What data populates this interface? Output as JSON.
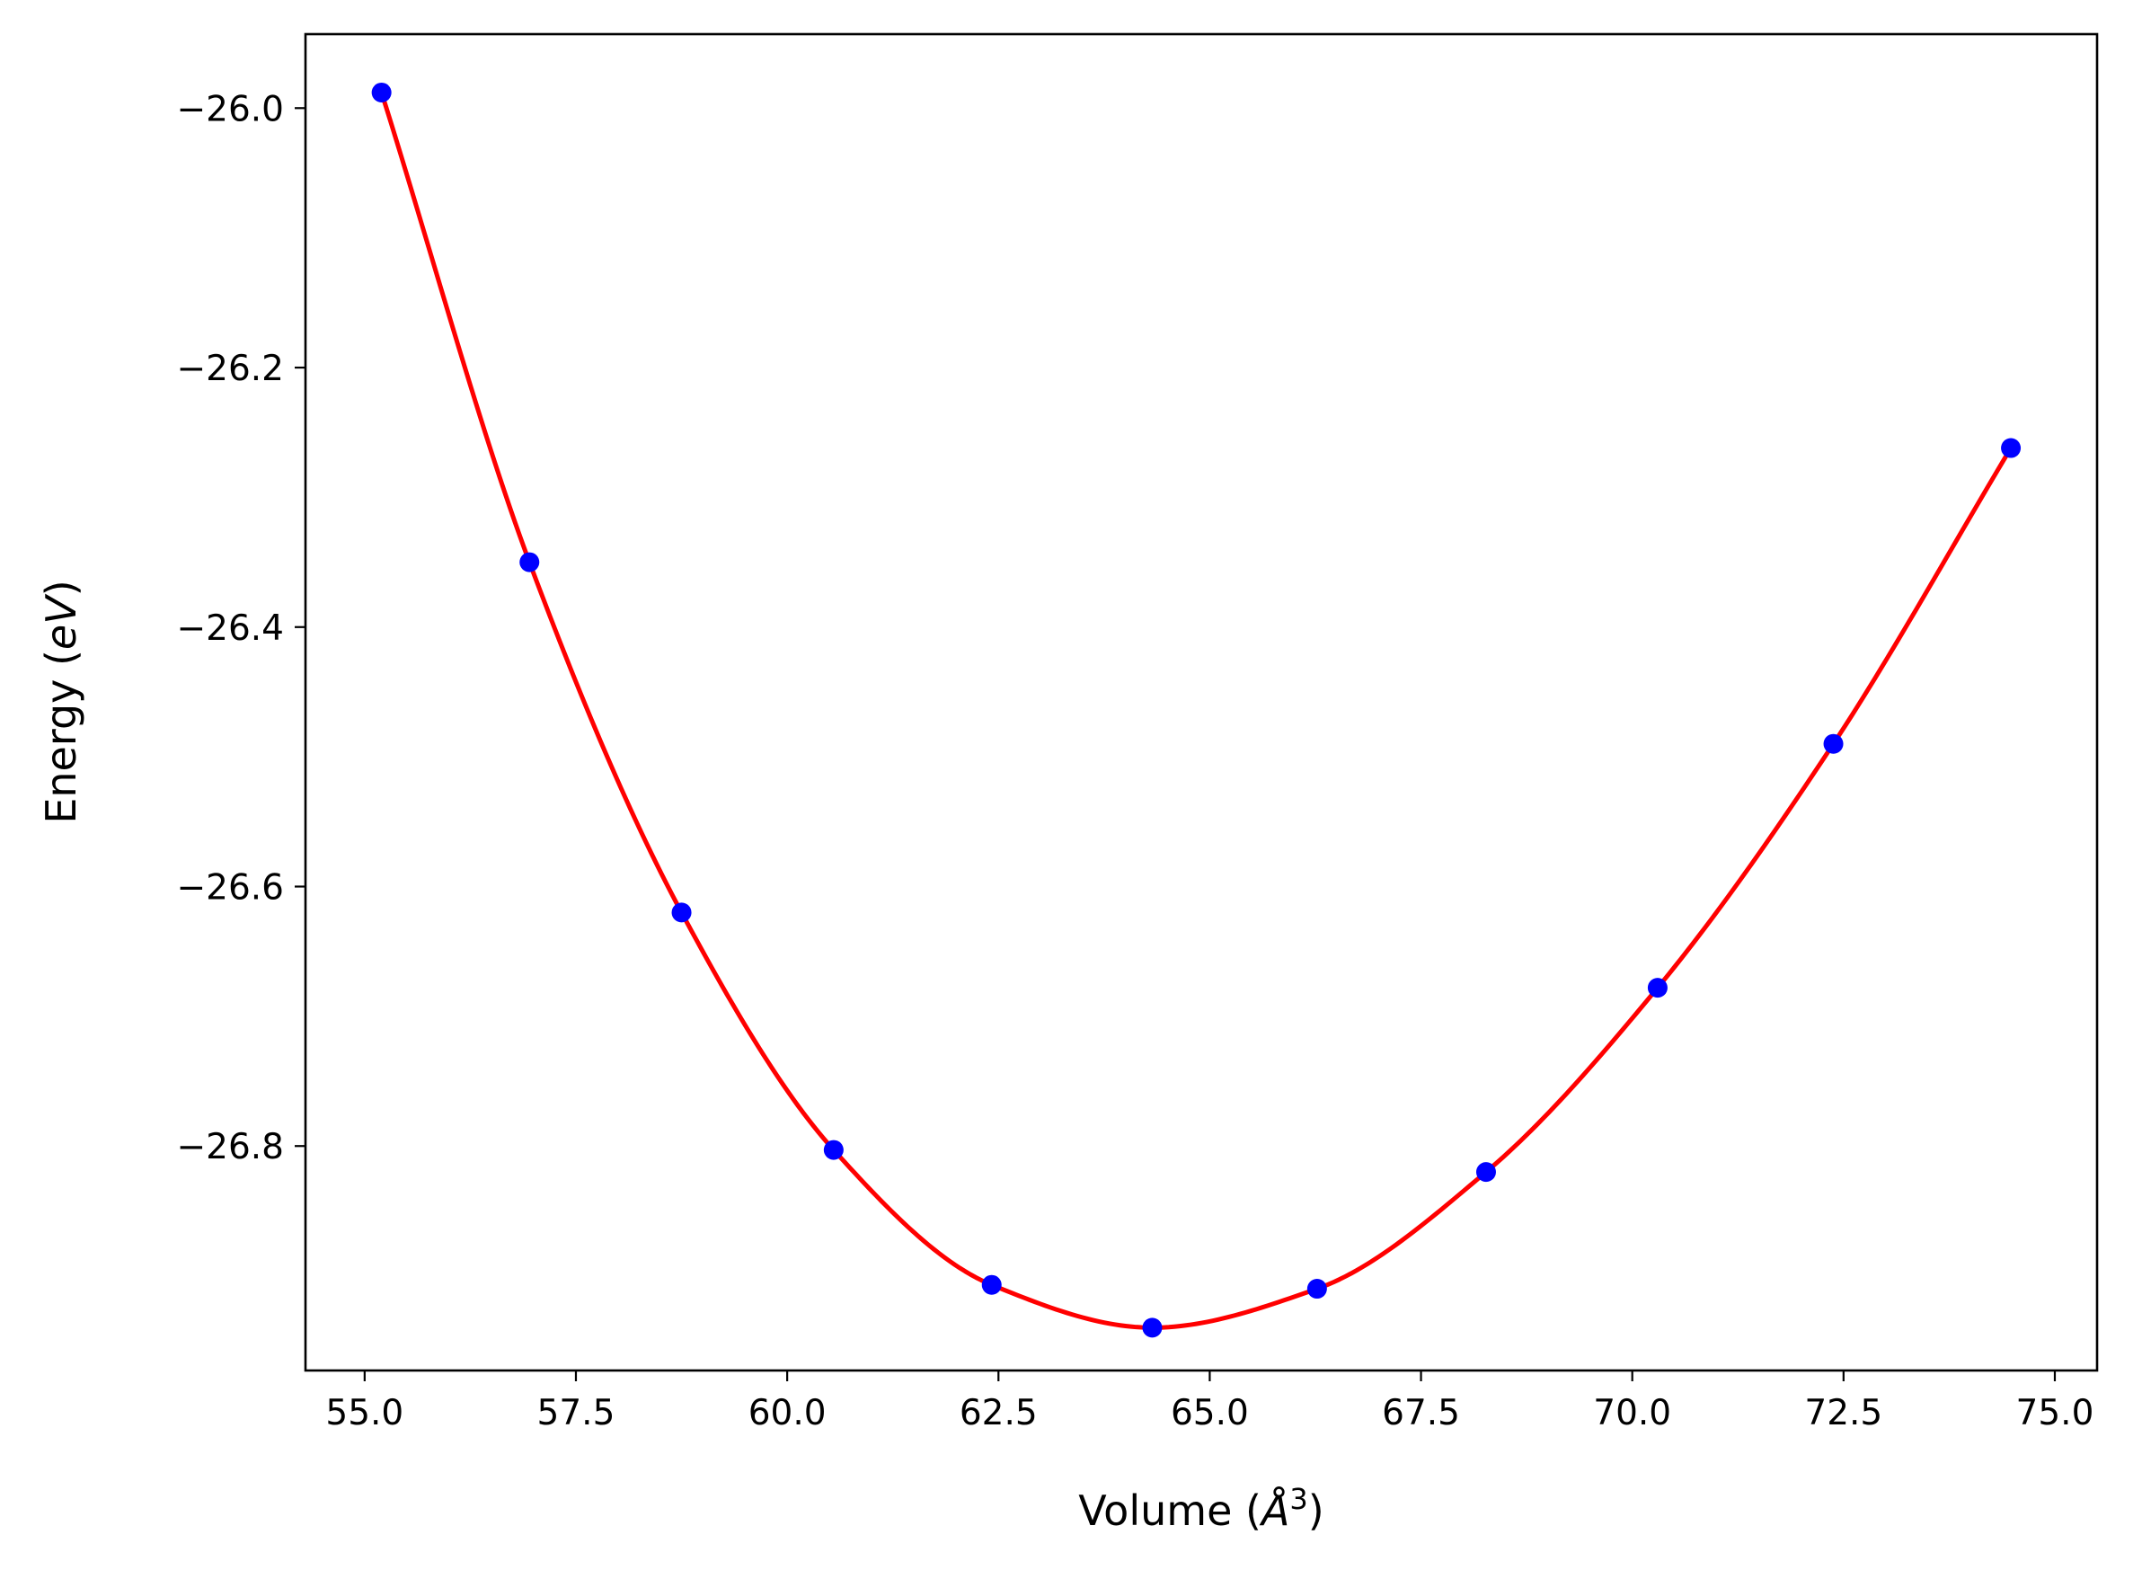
{
  "chart_data": {
    "type": "scatter",
    "title": "",
    "xlabel": {
      "main": "Volume (",
      "italic": "Å",
      "sup": "3",
      "close": ")"
    },
    "ylabel": {
      "main": "Energy (",
      "italic": "eV",
      "close": ")"
    },
    "xlim": [
      54.3,
      75.5
    ],
    "ylim": [
      -26.973,
      -25.943
    ],
    "xticks": [
      55.0,
      57.5,
      60.0,
      62.5,
      65.0,
      67.5,
      70.0,
      72.5,
      75.0
    ],
    "xtick_labels": [
      "55.0",
      "57.5",
      "60.0",
      "62.5",
      "65.0",
      "67.5",
      "70.0",
      "72.5",
      "75.0"
    ],
    "yticks": [
      -26.0,
      -26.2,
      -26.4,
      -26.6,
      -26.8
    ],
    "ytick_labels": [
      "−26.0",
      "−26.2",
      "−26.4",
      "−26.6",
      "−26.8"
    ],
    "grid": false,
    "series": [
      {
        "kind": "points",
        "color": "#0000ff",
        "x": [
          55.2,
          56.95,
          58.75,
          60.55,
          62.42,
          64.32,
          66.27,
          68.27,
          70.3,
          72.38,
          74.48
        ],
        "y": [
          -25.988,
          -26.35,
          -26.62,
          -26.803,
          -26.907,
          -26.94,
          -26.91,
          -26.82,
          -26.678,
          -26.49,
          -26.262
        ]
      },
      {
        "kind": "fit-curve",
        "color": "#ff0000",
        "x": [
          55.2,
          56.95,
          58.75,
          60.55,
          62.42,
          64.32,
          66.27,
          68.27,
          70.3,
          72.38,
          74.48
        ],
        "y": [
          -25.988,
          -26.35,
          -26.62,
          -26.803,
          -26.907,
          -26.94,
          -26.91,
          -26.82,
          -26.678,
          -26.49,
          -26.262
        ]
      }
    ]
  }
}
